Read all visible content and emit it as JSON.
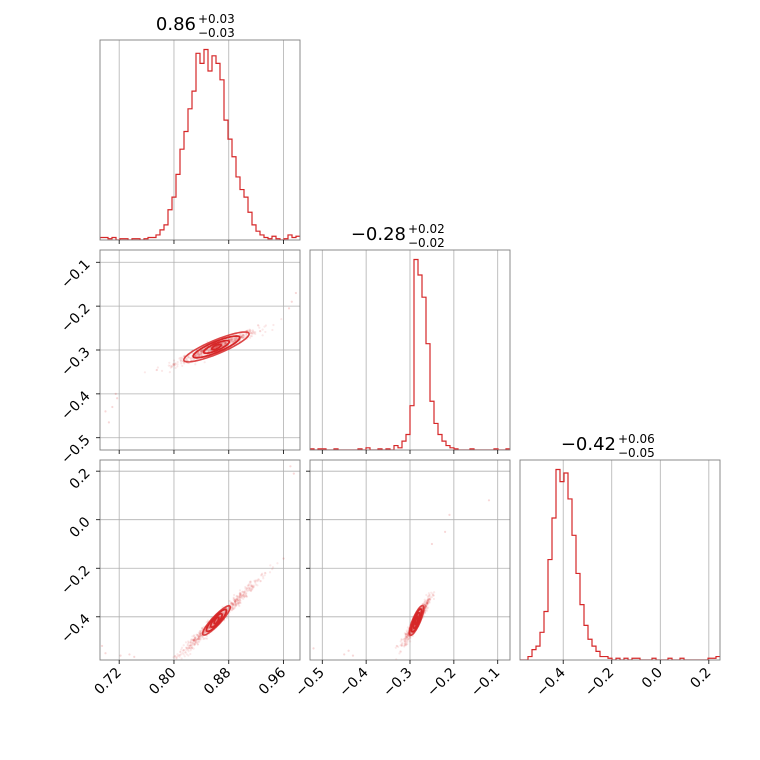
{
  "chart_data": {
    "type": "corner",
    "color": "#d62728",
    "grid": true,
    "panel_titles": [
      {
        "value": "0.86",
        "plus": "+0.03",
        "minus": "−0.03"
      },
      {
        "value": "−0.28",
        "plus": "+0.02",
        "minus": "−0.02"
      },
      {
        "value": "−0.42",
        "plus": "+0.06",
        "minus": "−0.05"
      }
    ],
    "params": [
      {
        "range": [
          0.692,
          0.984
        ],
        "ticks": [
          0.72,
          0.8,
          0.88,
          0.96
        ],
        "tick_labels": [
          "0.72",
          "0.80",
          "0.88",
          "0.96"
        ],
        "hist": {
          "edges": [
            0.692,
            0.984
          ],
          "counts": [
            2,
            2,
            1,
            2,
            0,
            1,
            1,
            0,
            1,
            1,
            0,
            1,
            2,
            2,
            4,
            8,
            12,
            24,
            34,
            52,
            72,
            86,
            104,
            118,
            148,
            140,
            151,
            134,
            146,
            140,
            127,
            95,
            80,
            66,
            50,
            40,
            34,
            22,
            12,
            7,
            4,
            2,
            1,
            3,
            1,
            0,
            1,
            4,
            2,
            3
          ]
        }
      },
      {
        "range": [
          -0.528,
          -0.072
        ],
        "ticks": [
          -0.5,
          -0.4,
          -0.3,
          -0.2,
          -0.1
        ],
        "tick_labels": [
          "−0.5",
          "−0.4",
          "−0.3",
          "−0.2",
          "−0.1"
        ],
        "hist": {
          "edges": [
            -0.528,
            -0.072
          ],
          "counts": [
            1,
            0,
            1,
            1,
            0,
            0,
            1,
            0,
            0,
            0,
            0,
            0,
            1,
            0,
            2,
            0,
            0,
            1,
            0,
            1,
            0,
            4,
            2,
            8,
            14,
            40,
            172,
            158,
            138,
            96,
            44,
            24,
            14,
            8,
            4,
            2,
            1,
            0,
            0,
            0,
            1,
            0,
            0,
            0,
            0,
            0,
            1,
            0,
            0,
            1
          ]
        }
      },
      {
        "range": [
          -0.578,
          0.246
        ],
        "ticks": [
          -0.4,
          -0.2,
          0.0,
          0.2
        ],
        "tick_labels": [
          "−0.4",
          "−0.2",
          "0.0",
          "0.2"
        ],
        "hist": {
          "edges": [
            -0.578,
            0.246
          ],
          "counts": [
            0,
            0,
            2,
            6,
            8,
            16,
            28,
            58,
            82,
            110,
            103,
            108,
            93,
            72,
            50,
            32,
            20,
            12,
            8,
            5,
            2,
            2,
            1,
            0,
            1,
            0,
            1,
            0,
            1,
            1,
            0,
            0,
            0,
            1,
            0,
            0,
            0,
            1,
            0,
            0,
            1,
            0,
            0,
            0,
            0,
            0,
            0,
            1,
            1,
            2
          ]
        }
      }
    ],
    "pairs": [
      {
        "x_param": 0,
        "y_param": 1,
        "y_ticks": [
          -0.5,
          -0.4,
          -0.3,
          -0.2,
          -0.1
        ],
        "y_tick_labels": [
          "−0.5",
          "−0.4",
          "−0.3",
          "−0.2",
          "−0.1"
        ],
        "relation": {
          "x_center": 0.862,
          "y_at_center": -0.293,
          "slope": 0.62,
          "x_spread": 0.03,
          "y_noise": 0.006
        },
        "contour_levels": [
          {
            "a": 0.008,
            "b": 0.0045
          },
          {
            "a": 0.022,
            "b": 0.0085
          },
          {
            "a": 0.04,
            "b": 0.013
          },
          {
            "a": 0.056,
            "b": 0.017
          }
        ],
        "outliers": [
          [
            0.7,
            -0.44
          ],
          [
            0.71,
            -0.43
          ],
          [
            0.715,
            -0.4
          ],
          [
            0.717,
            -0.41
          ],
          [
            0.705,
            -0.465
          ],
          [
            0.972,
            -0.19
          ],
          [
            0.978,
            -0.17
          ],
          [
            0.968,
            -0.205
          ]
        ]
      },
      {
        "x_param": 0,
        "y_param": 2,
        "y_ticks": [
          -0.4,
          -0.2,
          0.0,
          0.2
        ],
        "y_tick_labels": [
          "−0.4",
          "−0.2",
          "0.0",
          "0.2"
        ],
        "relation": {
          "x_center": 0.862,
          "y_at_center": -0.415,
          "slope": 2.7,
          "x_spread": 0.03,
          "y_noise": 0.012
        },
        "contour_levels": [
          {
            "a": 0.01,
            "b": 0.01
          },
          {
            "a": 0.024,
            "b": 0.016
          },
          {
            "a": 0.042,
            "b": 0.022
          },
          {
            "a": 0.058,
            "b": 0.026
          }
        ],
        "outliers": [
          [
            0.695,
            -0.52
          ],
          [
            0.7,
            -0.55
          ],
          [
            0.722,
            -0.56
          ],
          [
            0.735,
            -0.555
          ],
          [
            0.742,
            -0.565
          ],
          [
            0.97,
            0.22
          ],
          [
            0.975,
            0.19
          ],
          [
            0.96,
            -0.16
          ]
        ]
      },
      {
        "x_param": 1,
        "y_param": 2,
        "y_ticks": [
          -0.4,
          -0.2,
          0.0,
          0.2
        ],
        "y_tick_labels": [
          "−0.4",
          "−0.2",
          "0.0",
          "0.2"
        ],
        "relation": {
          "x_center": -0.285,
          "y_at_center": -0.415,
          "slope": 3.0,
          "x_spread": 0.014,
          "y_noise": 0.014
        },
        "contour_levels": [
          {
            "a": 0.01,
            "b": 0.014
          },
          {
            "a": 0.024,
            "b": 0.022
          },
          {
            "a": 0.038,
            "b": 0.03
          },
          {
            "a": 0.052,
            "b": 0.036
          }
        ],
        "outliers": [
          [
            -0.52,
            -0.53
          ],
          [
            -0.45,
            -0.555
          ],
          [
            -0.43,
            -0.56
          ],
          [
            -0.44,
            -0.54
          ],
          [
            -0.33,
            -0.52
          ],
          [
            -0.22,
            -0.05
          ],
          [
            -0.21,
            0.02
          ],
          [
            -0.12,
            0.08
          ],
          [
            -0.25,
            -0.1
          ]
        ]
      }
    ]
  }
}
